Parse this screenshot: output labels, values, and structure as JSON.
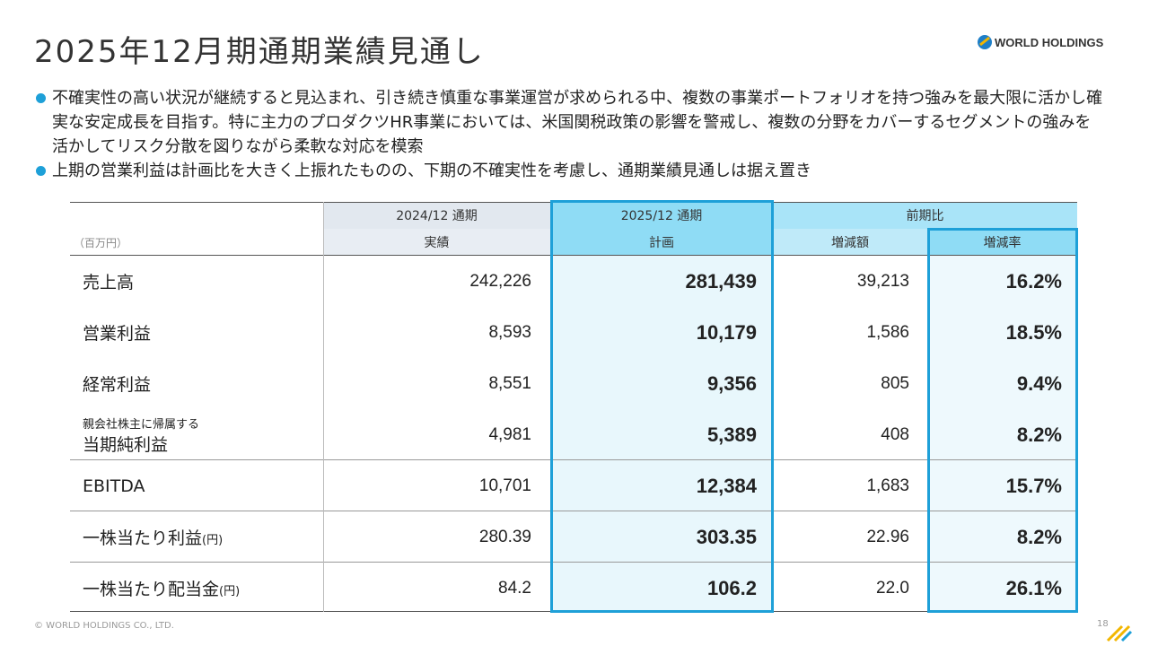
{
  "header": {
    "title": "2025年12月期通期業績見通し",
    "logo": "WORLD HOLDINGS"
  },
  "bullets": [
    "不確実性の高い状況が継続すると見込まれ、引き続き慎重な事業運営が求められる中、複数の事業ポートフォリオを持つ強みを最大限に活かし確実な安定成長を目指す。特に主力のプロダクツHR事業においては、米国関税政策の影響を警戒し、複数の分野をカバーするセグメントの強みを活かしてリスク分散を図りながら柔軟な対応を模索",
    "上期の営業利益は計画比を大きく上振れたものの、下期の不確実性を考慮し、通期業績見通しは据え置き"
  ],
  "table": {
    "period_headers": [
      "2024/12 通期",
      "2025/12 通期",
      "前期比"
    ],
    "unit": "（百万円）",
    "column_headers": [
      "実績",
      "計画",
      "増減額",
      "増減率"
    ],
    "rows": [
      {
        "label": "売上高",
        "values": [
          "242,226",
          "281,439",
          "39,213",
          "16.2%"
        ]
      },
      {
        "label": "営業利益",
        "values": [
          "8,593",
          "10,179",
          "1,586",
          "18.5%"
        ]
      },
      {
        "label": "経常利益",
        "values": [
          "8,551",
          "9,356",
          "805",
          "9.4%"
        ]
      },
      {
        "note": "親会社株主に帰属する",
        "label": "当期純利益",
        "values": [
          "4,981",
          "5,389",
          "408",
          "8.2%"
        ]
      },
      {
        "label": "EBITDA",
        "values": [
          "10,701",
          "12,384",
          "1,683",
          "15.7%"
        ]
      },
      {
        "label": "一株当たり利益",
        "unit": "(円)",
        "values": [
          "280.39",
          "303.35",
          "22.96",
          "8.2%"
        ]
      },
      {
        "label": "一株当たり配当金",
        "unit": "(円)",
        "values": [
          "84.2",
          "106.2",
          "22.0",
          "26.1%"
        ]
      }
    ]
  },
  "footer": {
    "copyright": "© WORLD HOLDINGS CO., LTD.",
    "page": "18"
  }
}
